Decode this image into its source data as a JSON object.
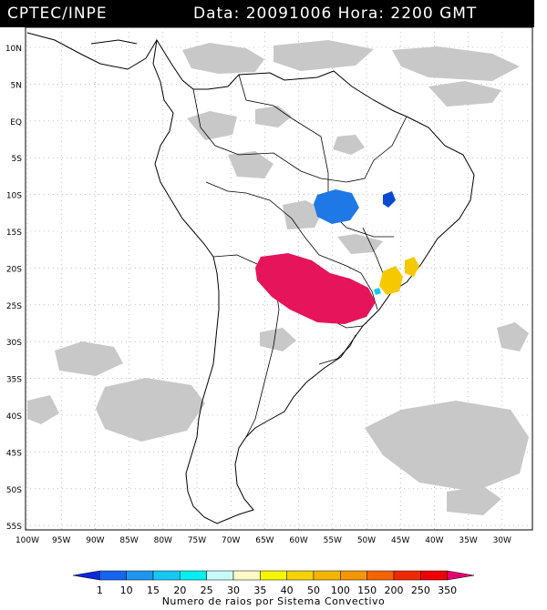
{
  "header": {
    "source": "CPTEC/INPE",
    "data_label": "Data:",
    "date": "20091006",
    "hora_label": "Hora:",
    "time": "2200 GMT"
  },
  "map": {
    "lat_labels": [
      "10N",
      "5N",
      "EQ",
      "5S",
      "10S",
      "15S",
      "20S",
      "25S",
      "30S",
      "35S",
      "40S",
      "45S",
      "50S",
      "55S"
    ],
    "lon_labels": [
      "100W",
      "95W",
      "90W",
      "85W",
      "80W",
      "75W",
      "70W",
      "65W",
      "60W",
      "55W",
      "50W",
      "45W",
      "40W",
      "35W",
      "30W"
    ]
  },
  "colorbar": {
    "title": "Numero de raios por Sistema Convectivo",
    "labels": [
      "1",
      "10",
      "15",
      "20",
      "25",
      "30",
      "35",
      "40",
      "50",
      "100",
      "150",
      "200",
      "250",
      "350"
    ],
    "colors": [
      "#0a28dc",
      "#1466f0",
      "#1e96f0",
      "#14c8f5",
      "#00f0f0",
      "#c8fafa",
      "#fafac8",
      "#f5f500",
      "#f5d200",
      "#f5b400",
      "#f59600",
      "#f56400",
      "#f02800",
      "#f00000",
      "#e6006e"
    ]
  },
  "colors": {
    "cloud": "#c8c8c8",
    "cluster_blue": "#1e78e6",
    "cluster_dark_blue": "#0a4ad2",
    "cluster_magenta": "#e6145a",
    "cluster_yellow": "#f5c800"
  }
}
